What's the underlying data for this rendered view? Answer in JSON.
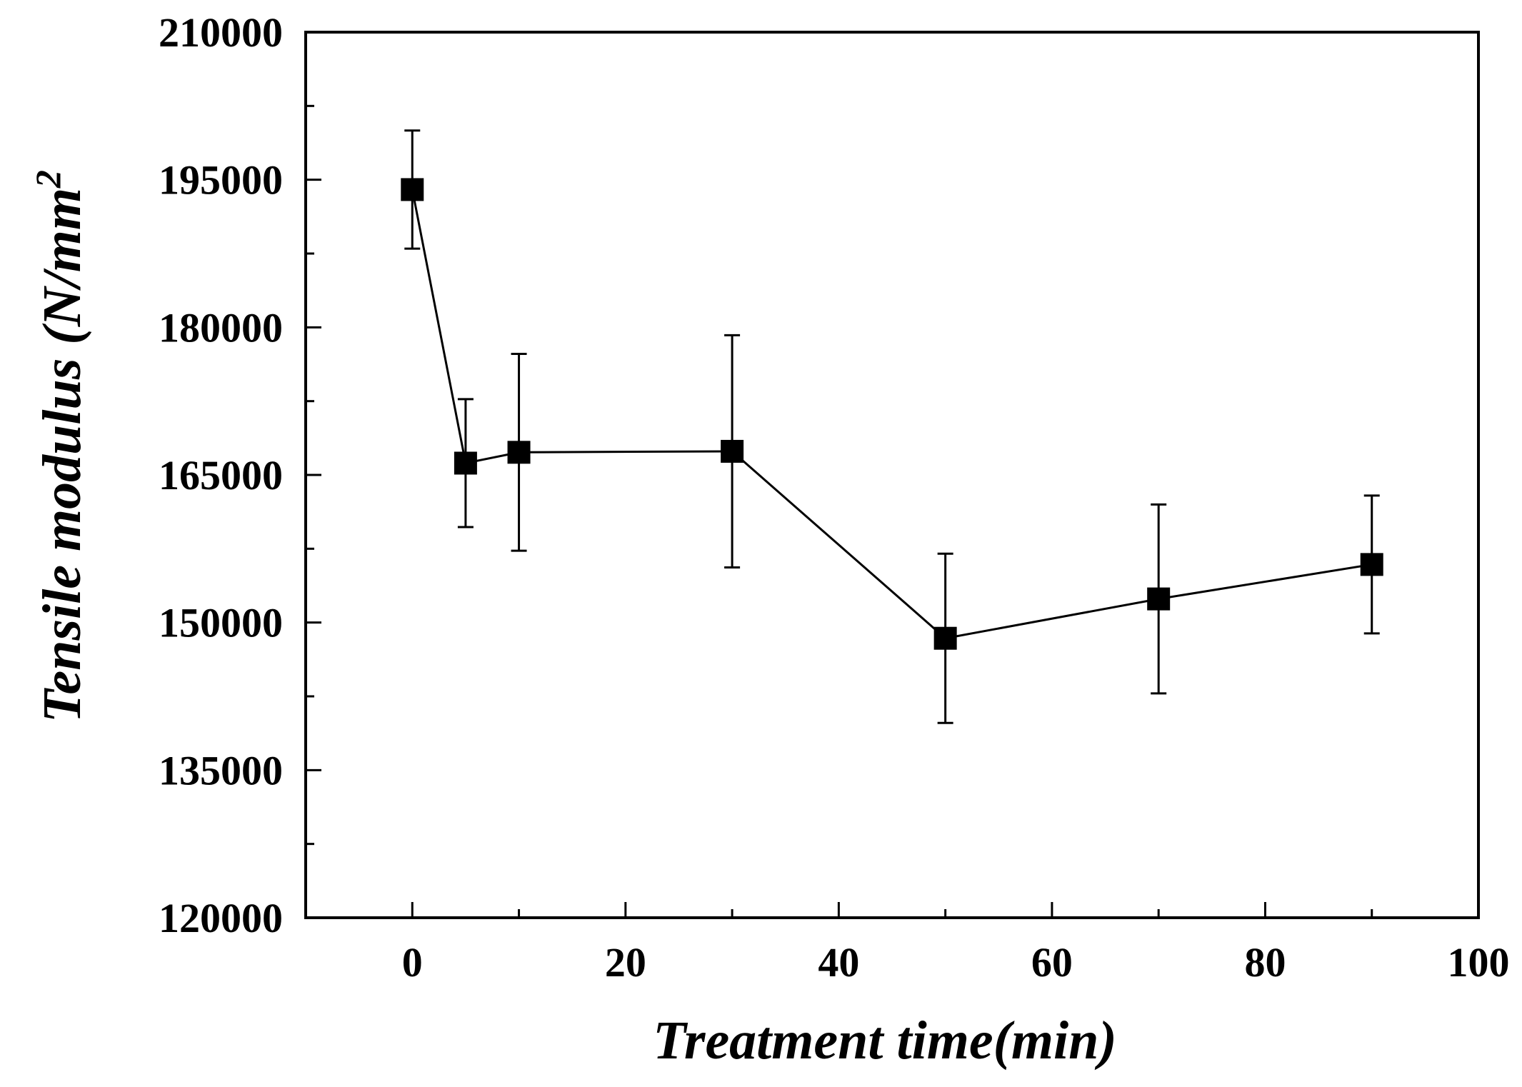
{
  "chart_data": {
    "type": "line",
    "title": "",
    "xlabel": "Treatment time(min)",
    "ylabel_main": "Tensile modulus (N/mm",
    "ylabel_sup": "2",
    "ylabel_close": "",
    "xlim": [
      -10,
      100
    ],
    "ylim": [
      120000,
      210000
    ],
    "x_ticks": [
      0,
      20,
      40,
      60,
      80,
      100
    ],
    "y_ticks": [
      120000,
      135000,
      150000,
      165000,
      180000,
      195000,
      210000
    ],
    "x_minor_step": 10,
    "y_minor_step": 7500,
    "grid": false,
    "marker": "square",
    "series": [
      {
        "name": "Tensile modulus",
        "x": [
          0,
          5,
          10,
          30,
          50,
          70,
          90
        ],
        "values": [
          194000,
          166200,
          167300,
          167400,
          148400,
          152400,
          155900
        ],
        "error": [
          6000,
          6500,
          10000,
          11800,
          8600,
          9600,
          7000
        ]
      }
    ]
  }
}
